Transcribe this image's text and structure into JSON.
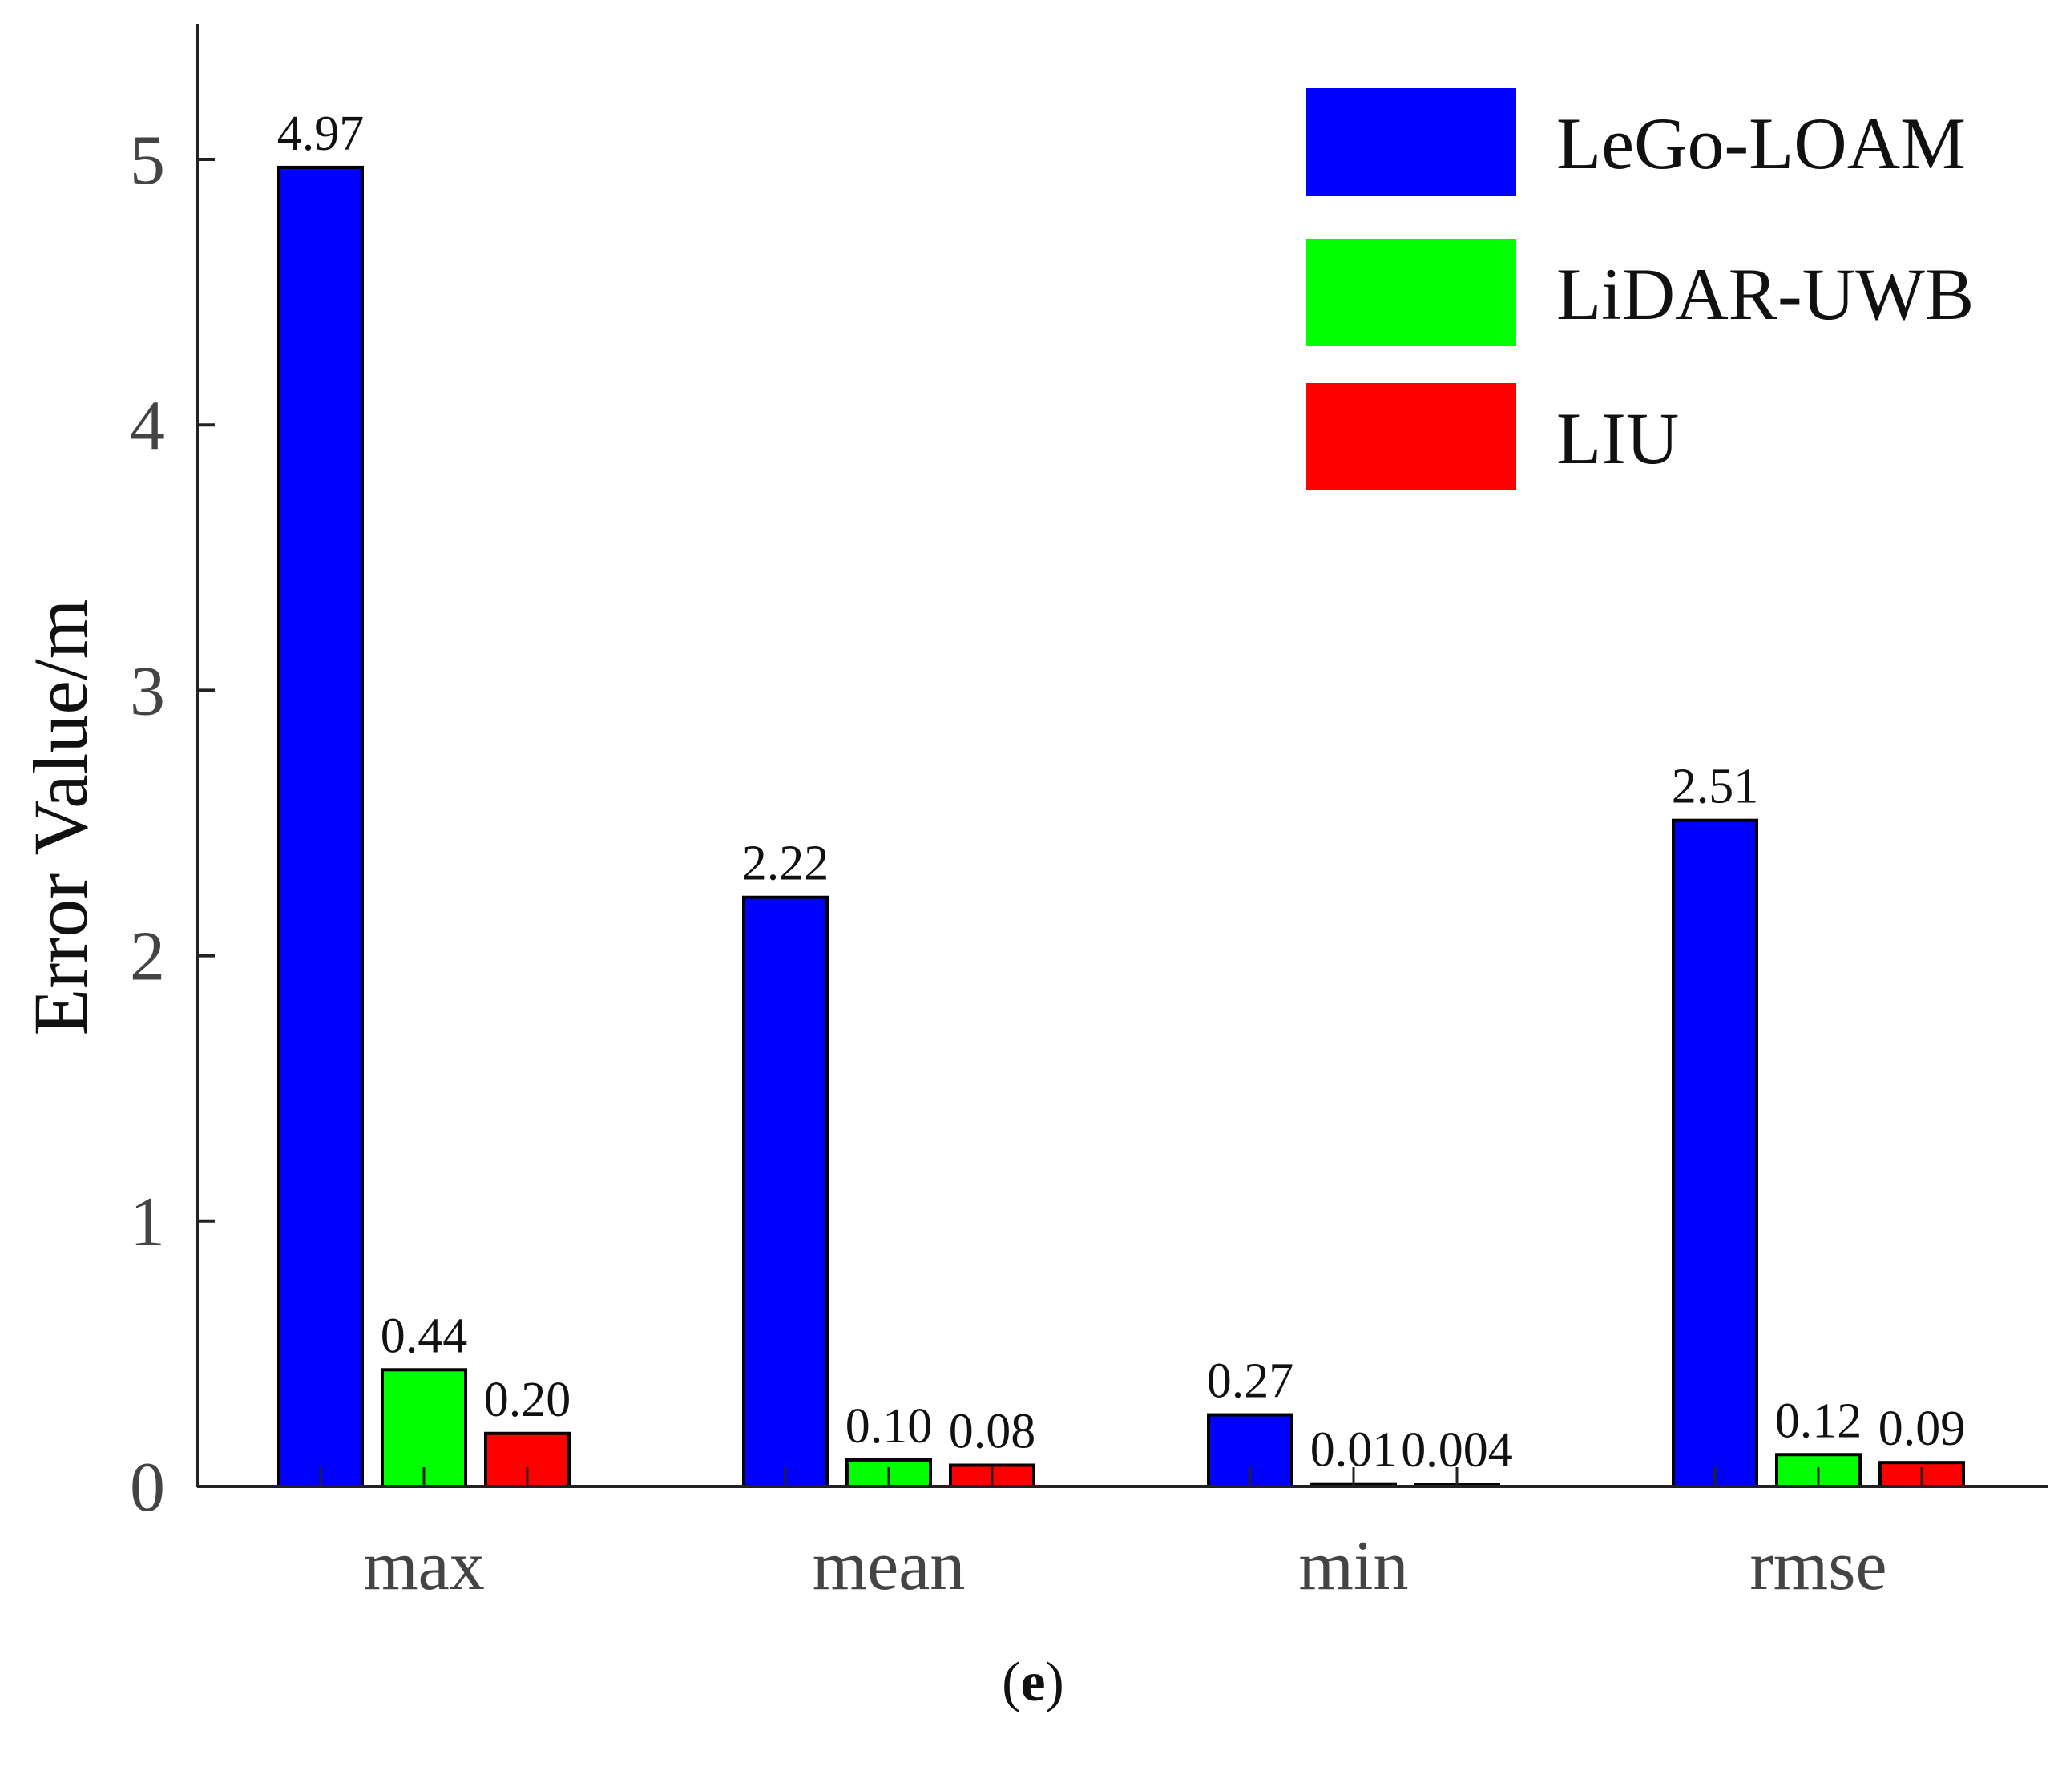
{
  "chart_data": {
    "type": "bar",
    "title": "",
    "xlabel": "",
    "ylabel": "Error Value/m",
    "ylim": [
      0,
      5.5
    ],
    "yticks": [
      0,
      1,
      2,
      3,
      4,
      5
    ],
    "categories": [
      "max",
      "mean",
      "min",
      "rmse"
    ],
    "series": [
      {
        "name": "LeGo-LOAM",
        "color": "#0000ff",
        "values": [
          4.97,
          2.22,
          0.27,
          2.51
        ],
        "labels": [
          "4.97",
          "2.22",
          "0.27",
          "2.51"
        ]
      },
      {
        "name": "LiDAR-UWB",
        "color": "#00ff00",
        "values": [
          0.44,
          0.1,
          0.01,
          0.12
        ],
        "labels": [
          "0.44",
          "0.10",
          "0.01",
          "0.12"
        ]
      },
      {
        "name": "LIU",
        "color": "#ff0000",
        "values": [
          0.2,
          0.08,
          0.004,
          0.09
        ],
        "labels": [
          "0.20",
          "0.08",
          "0.004",
          "0.09"
        ]
      }
    ],
    "legend_position": "top-right",
    "grid": false
  },
  "caption": {
    "open": "(",
    "letter": "e",
    "close": ")"
  }
}
